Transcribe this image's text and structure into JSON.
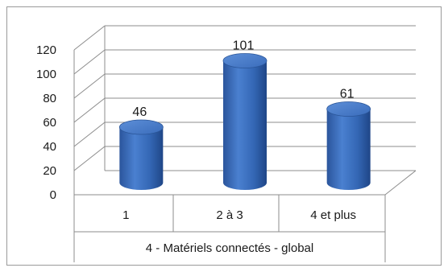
{
  "chart_data": {
    "type": "bar",
    "style": "3d-cylinder",
    "group_label": "4 - Matériels connectés - global",
    "categories": [
      "1",
      "2 à 3",
      "4 et plus"
    ],
    "values": [
      46,
      101,
      61
    ],
    "data_labels": [
      "46",
      "101",
      "61"
    ],
    "y_ticks": [
      "0",
      "20",
      "40",
      "60",
      "80",
      "100",
      "120"
    ],
    "ylim": [
      0,
      120
    ],
    "grid": true,
    "legend": "none",
    "bar_color": "#3b6fbf"
  }
}
